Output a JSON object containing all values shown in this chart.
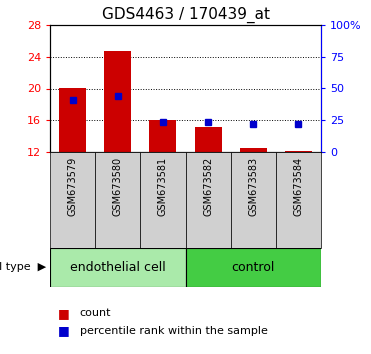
{
  "title": "GDS4463 / 170439_at",
  "samples": [
    "GSM673579",
    "GSM673580",
    "GSM673581",
    "GSM673582",
    "GSM673583",
    "GSM673584"
  ],
  "red_values": [
    20.1,
    24.7,
    16.0,
    15.2,
    12.5,
    12.1
  ],
  "blue_values_pct": [
    41,
    44,
    24,
    23.5,
    22,
    22
  ],
  "y_min": 12,
  "y_max": 28,
  "y_ticks": [
    12,
    16,
    20,
    24,
    28
  ],
  "right_y_ticks": [
    0,
    25,
    50,
    75,
    100
  ],
  "right_y_labels": [
    "0",
    "25",
    "50",
    "75",
    "100%"
  ],
  "cell_type_label": "cell type",
  "bar_color": "#CC0000",
  "dot_color": "#0000CC",
  "bar_width": 0.6,
  "sample_bg_color": "#D0D0D0",
  "endothelial_color": "#AAEAAA",
  "control_color": "#44CC44",
  "legend_count": "count",
  "legend_pct": "percentile rank within the sample",
  "title_fontsize": 11,
  "tick_fontsize": 8,
  "sample_fontsize": 7,
  "ct_fontsize": 9,
  "legend_fontsize": 8
}
